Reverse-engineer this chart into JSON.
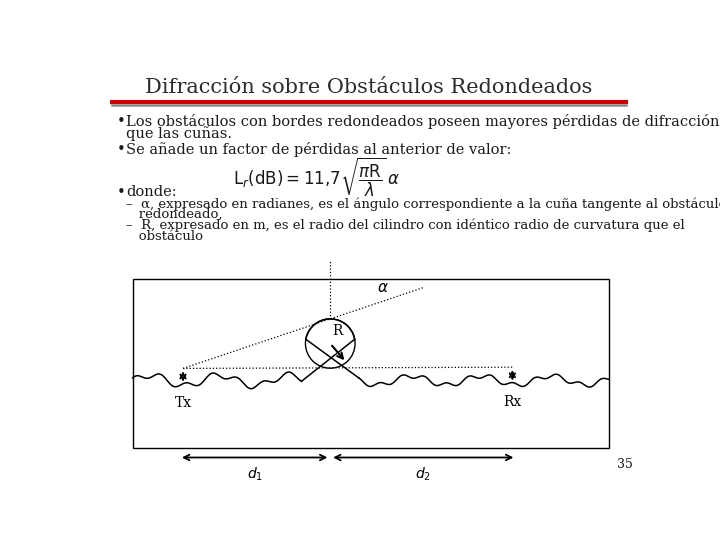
{
  "title": "Difracción sobre Obstáculos Redondeados",
  "bg_color": "#ffffff",
  "title_color": "#2c2c2c",
  "line1_color": "#cc0000",
  "line2_color": "#888888",
  "bullet1_line1": "Los obstáculos con bordes redondeados poseen mayores pérdidas de difracción",
  "bullet1_line2": "que las cuñas.",
  "bullet2": "Se añade un factor de pérdidas al anterior de valor:",
  "bullet3": "donde:",
  "sub1_line1": "–  α, expresado en radianes, es el ángulo correspondiente a la cuña tangente al obstáculo",
  "sub1_line2": "   redondeado,",
  "sub2_line1": "–  R, expresado en m, es el radio del cilindro con idéntico radio de curvatura que el",
  "sub2_line2": "   obstáculo",
  "page_number": "35",
  "text_color": "#1a1a1a"
}
